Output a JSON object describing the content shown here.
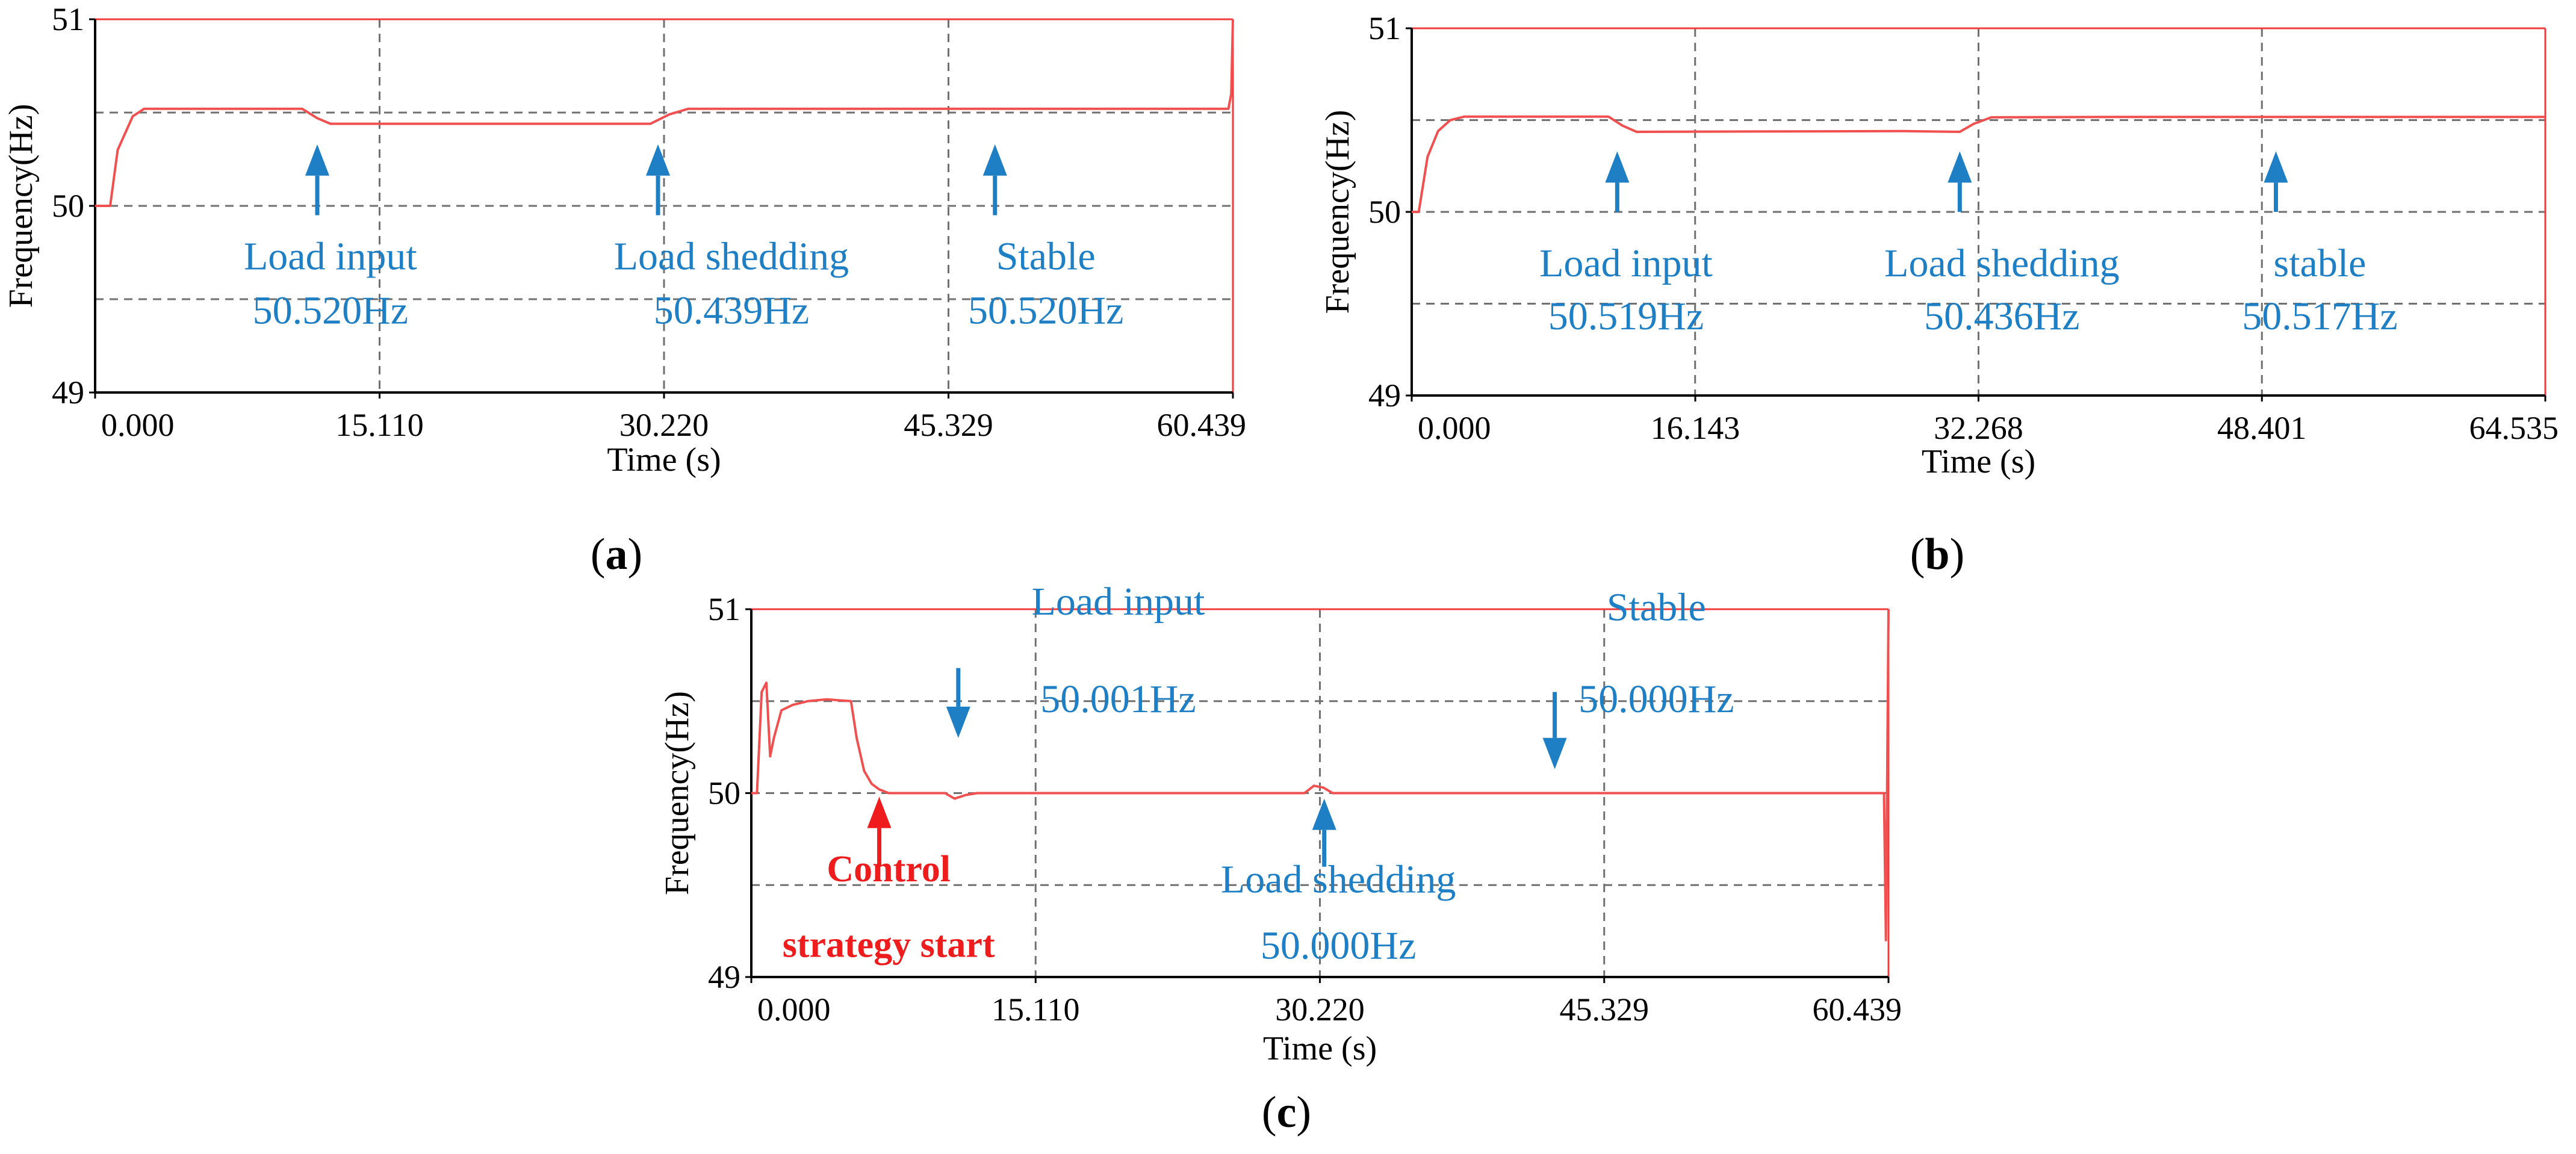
{
  "colors": {
    "trace": "#f05050",
    "frame": "#f03c3c",
    "annotation": "#1f7fc4",
    "control": "#ee1c1c",
    "grid": "#707070",
    "text": "#000000"
  },
  "chart_data": [
    {
      "type": "line",
      "panel": "a",
      "xlabel": "Time (s)",
      "ylabel": "Frequency(Hz)",
      "xlim": [
        0,
        60.439
      ],
      "ylim": [
        49,
        51
      ],
      "xticks": [
        "0.000",
        "15.110",
        "30.220",
        "45.329",
        "60.439"
      ],
      "yticks": [
        "49",
        "50",
        "51"
      ],
      "grid": true,
      "series": [
        {
          "name": "Frequency",
          "x": [
            0,
            0.8,
            1.2,
            2.0,
            2.6,
            11.0,
            11.8,
            12.5,
            13.5,
            29.5,
            30.5,
            31.5,
            60.2,
            60.35,
            60.439
          ],
          "y": [
            50.0,
            50.0,
            50.3,
            50.48,
            50.52,
            50.52,
            50.47,
            50.44,
            50.44,
            50.44,
            50.49,
            50.52,
            50.52,
            50.6,
            51.0
          ]
        }
      ],
      "annotations": [
        {
          "kind": "arrow-up",
          "x": 11.8,
          "y_from": 49.95,
          "y_to": 50.33
        },
        {
          "kind": "arrow-up",
          "x": 29.9,
          "y_from": 49.95,
          "y_to": 50.33
        },
        {
          "kind": "arrow-up",
          "x": 47.8,
          "y_from": 49.95,
          "y_to": 50.33
        },
        {
          "kind": "text",
          "x": 12.5,
          "y": 49.66,
          "text": "Load input"
        },
        {
          "kind": "text",
          "x": 12.5,
          "y": 49.37,
          "text": "50.520Hz"
        },
        {
          "kind": "text",
          "x": 33.8,
          "y": 49.66,
          "text": "Load shedding"
        },
        {
          "kind": "text",
          "x": 33.8,
          "y": 49.37,
          "text": "50.439Hz"
        },
        {
          "kind": "text",
          "x": 50.5,
          "y": 49.66,
          "text": "Stable"
        },
        {
          "kind": "text",
          "x": 50.5,
          "y": 49.37,
          "text": "50.520Hz"
        }
      ],
      "caption": {
        "open": "(",
        "letter": "a",
        "close": ")"
      }
    },
    {
      "type": "line",
      "panel": "b",
      "xlabel": "Time (s)",
      "ylabel": "Frequency(Hz)",
      "xlim": [
        0,
        64.535
      ],
      "ylim": [
        49,
        51
      ],
      "xticks": [
        "0.000",
        "16.143",
        "32.268",
        "48.401",
        "64.535"
      ],
      "yticks": [
        "49",
        "50",
        "51"
      ],
      "grid": true,
      "series": [
        {
          "name": "Frequency",
          "x": [
            0,
            0.4,
            0.9,
            1.5,
            2.2,
            3.0,
            11.2,
            12.0,
            12.8,
            20,
            28,
            31.2,
            32.0,
            33.0,
            40,
            64.535
          ],
          "y": [
            50.0,
            50.0,
            50.3,
            50.44,
            50.5,
            50.519,
            50.519,
            50.47,
            50.436,
            50.438,
            50.44,
            50.436,
            50.48,
            50.515,
            50.517,
            50.517
          ]
        }
      ],
      "annotations": [
        {
          "kind": "arrow-up",
          "x": 11.7,
          "y_from": 50.0,
          "y_to": 50.33
        },
        {
          "kind": "arrow-up",
          "x": 31.2,
          "y_from": 50.0,
          "y_to": 50.33
        },
        {
          "kind": "arrow-up",
          "x": 49.2,
          "y_from": 50.0,
          "y_to": 50.33
        },
        {
          "kind": "text",
          "x": 12.2,
          "y": 49.65,
          "text": "Load input"
        },
        {
          "kind": "text",
          "x": 12.2,
          "y": 49.36,
          "text": "50.519Hz"
        },
        {
          "kind": "text",
          "x": 33.6,
          "y": 49.65,
          "text": "Load shedding"
        },
        {
          "kind": "text",
          "x": 33.6,
          "y": 49.36,
          "text": "50.436Hz"
        },
        {
          "kind": "text",
          "x": 51.7,
          "y": 49.65,
          "text": "stable"
        },
        {
          "kind": "text",
          "x": 51.7,
          "y": 49.36,
          "text": "50.517Hz"
        }
      ],
      "caption": {
        "open": "(",
        "letter": "b",
        "close": ")"
      }
    },
    {
      "type": "line",
      "panel": "c",
      "xlabel": "Time (s)",
      "ylabel": "Frequency(Hz)",
      "xlim": [
        0,
        60.439
      ],
      "ylim": [
        49,
        51
      ],
      "xticks": [
        "0.000",
        "15.110",
        "30.220",
        "45.329",
        "60.439"
      ],
      "yticks": [
        "49",
        "50",
        "51"
      ],
      "grid": true,
      "series": [
        {
          "name": "Frequency",
          "x": [
            0,
            0.3,
            0.55,
            0.8,
            1.0,
            1.2,
            1.6,
            2.2,
            3.0,
            4.0,
            5.3,
            5.6,
            6.0,
            6.4,
            6.8,
            7.3,
            10.3,
            10.8,
            11.4,
            12.0,
            29.4,
            29.9,
            30.4,
            30.9,
            60.2,
            60.3,
            60.439
          ],
          "y": [
            50.0,
            50.0,
            50.55,
            50.6,
            50.2,
            50.3,
            50.45,
            50.48,
            50.5,
            50.51,
            50.5,
            50.3,
            50.12,
            50.05,
            50.02,
            50.0,
            50.0,
            49.97,
            49.99,
            50.0,
            50.0,
            50.04,
            50.03,
            50.0,
            50.0,
            49.2,
            51.0
          ]
        }
      ],
      "annotations": [
        {
          "kind": "arrow-down",
          "x": 11.0,
          "y_from": 50.68,
          "y_to": 50.3
        },
        {
          "kind": "arrow-up",
          "x": 30.45,
          "y_from": 49.6,
          "y_to": 49.97
        },
        {
          "kind": "arrow-down",
          "x": 42.7,
          "y_from": 50.55,
          "y_to": 50.13
        },
        {
          "kind": "arrow-up-red",
          "x": 6.8,
          "y_from": 49.6,
          "y_to": 49.98
        },
        {
          "kind": "text",
          "x": 19.5,
          "y": 50.97,
          "text": "Load input"
        },
        {
          "kind": "text",
          "x": 19.5,
          "y": 50.44,
          "text": "50.001Hz"
        },
        {
          "kind": "text",
          "x": 31.2,
          "y": 49.46,
          "text": "Load shedding"
        },
        {
          "kind": "text",
          "x": 31.2,
          "y": 49.1,
          "text": "50.000Hz"
        },
        {
          "kind": "text",
          "x": 48.1,
          "y": 50.94,
          "text": "Stable"
        },
        {
          "kind": "text",
          "x": 48.1,
          "y": 50.44,
          "text": "50.000Hz"
        },
        {
          "kind": "text-red",
          "x": 7.3,
          "y": 49.52,
          "text": "Control"
        },
        {
          "kind": "text-red",
          "x": 7.3,
          "y": 49.11,
          "text": "strategy start"
        }
      ],
      "caption": {
        "open": "(",
        "letter": "c",
        "close": ")"
      }
    }
  ]
}
